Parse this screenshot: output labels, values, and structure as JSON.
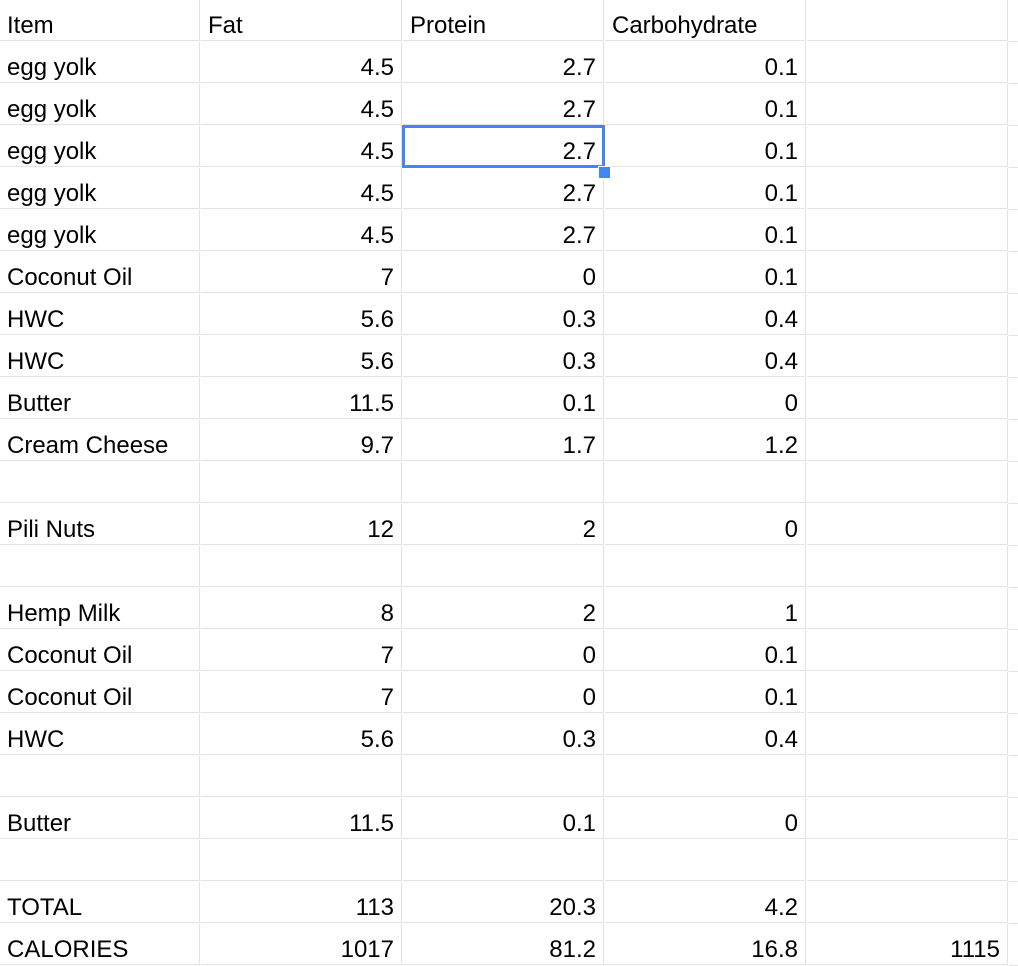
{
  "headers": [
    "Item",
    "Fat",
    "Protein",
    "Carbohydrate",
    ""
  ],
  "rows": [
    [
      "egg yolk",
      "4.5",
      "2.7",
      "0.1",
      ""
    ],
    [
      "egg yolk",
      "4.5",
      "2.7",
      "0.1",
      ""
    ],
    [
      "egg yolk",
      "4.5",
      "2.7",
      "0.1",
      ""
    ],
    [
      "egg yolk",
      "4.5",
      "2.7",
      "0.1",
      ""
    ],
    [
      "egg yolk",
      "4.5",
      "2.7",
      "0.1",
      ""
    ],
    [
      "Coconut Oil",
      "7",
      "0",
      "0.1",
      ""
    ],
    [
      "HWC",
      "5.6",
      "0.3",
      "0.4",
      ""
    ],
    [
      "HWC",
      "5.6",
      "0.3",
      "0.4",
      ""
    ],
    [
      "Butter",
      "11.5",
      "0.1",
      "0",
      ""
    ],
    [
      "Cream Cheese",
      "9.7",
      "1.7",
      "1.2",
      ""
    ],
    [
      "",
      "",
      "",
      "",
      ""
    ],
    [
      "Pili Nuts",
      "12",
      "2",
      "0",
      ""
    ],
    [
      "",
      "",
      "",
      "",
      ""
    ],
    [
      "Hemp Milk",
      "8",
      "2",
      "1",
      ""
    ],
    [
      "Coconut Oil",
      "7",
      "0",
      "0.1",
      ""
    ],
    [
      "Coconut Oil",
      "7",
      "0",
      "0.1",
      ""
    ],
    [
      "HWC",
      "5.6",
      "0.3",
      "0.4",
      ""
    ],
    [
      "",
      "",
      "",
      "",
      ""
    ],
    [
      "Butter",
      "11.5",
      "0.1",
      "0",
      ""
    ],
    [
      "",
      "",
      "",
      "",
      ""
    ],
    [
      "TOTAL",
      "113",
      "20.3",
      "4.2",
      ""
    ],
    [
      "CALORIES",
      "1017",
      "81.2",
      "16.8",
      "1115"
    ]
  ],
  "selection": {
    "row": 2,
    "col": 2
  }
}
